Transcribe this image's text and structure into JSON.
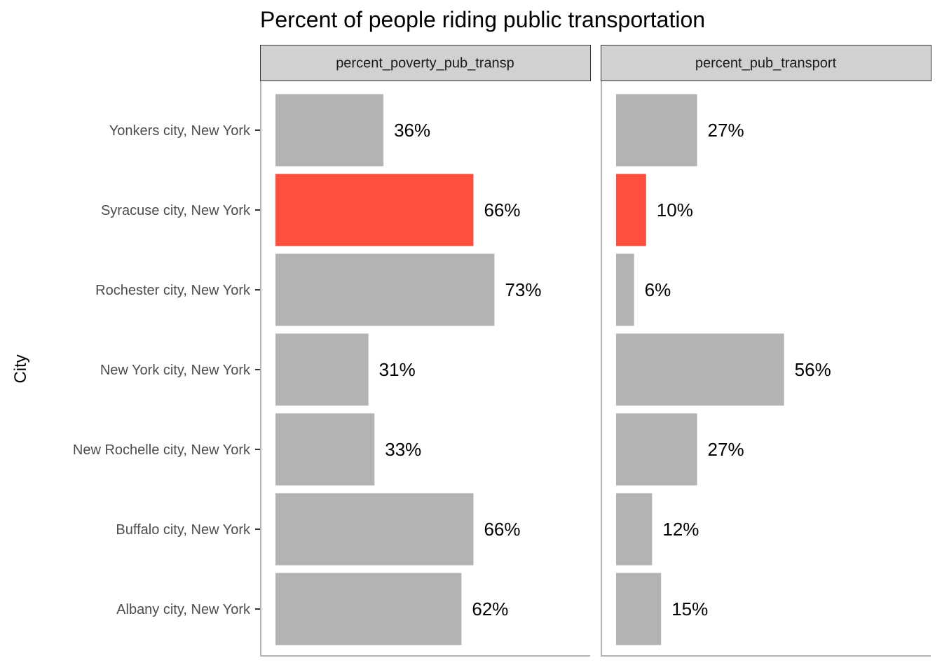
{
  "chart_data": {
    "type": "bar",
    "orientation": "horizontal",
    "title": "Percent of people riding public transportation",
    "ylabel": "City",
    "xlabel": "",
    "categories": [
      "Albany city, New York",
      "Buffalo city, New York",
      "New Rochelle city, New York",
      "New York city, New York",
      "Rochester city, New York",
      "Syracuse city, New York",
      "Yonkers city, New York"
    ],
    "highlight_category": "Syracuse city, New York",
    "colors": {
      "bar": "#b3b3b3",
      "highlight": "#fe4e3d",
      "strip": "#d1d1d1"
    },
    "panels": [
      {
        "name": "percent_poverty_pub_transp",
        "values": [
          62,
          66,
          33,
          31,
          73,
          66,
          36
        ],
        "labels": [
          "62%",
          "66%",
          "33%",
          "31%",
          "73%",
          "66%",
          "36%"
        ]
      },
      {
        "name": "percent_pub_transport",
        "values": [
          15,
          12,
          27,
          56,
          6,
          10,
          27
        ],
        "labels": [
          "15%",
          "12%",
          "27%",
          "56%",
          "6%",
          "10%",
          "27%"
        ]
      }
    ]
  }
}
